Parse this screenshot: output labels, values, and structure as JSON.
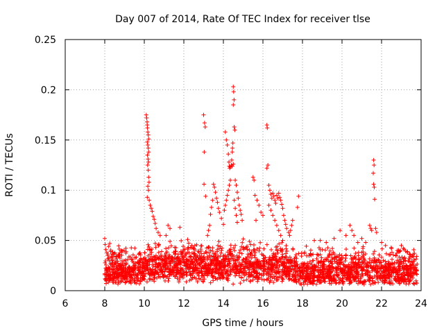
{
  "chart_data": {
    "type": "scatter",
    "title": "Day 007 of 2014, Rate Of TEC Index for receiver tlse",
    "xlabel": "GPS time / hours",
    "ylabel": "ROTI / TECUs",
    "xlim": [
      6,
      24
    ],
    "ylim": [
      0,
      0.25
    ],
    "x_ticks": [
      6,
      8,
      10,
      12,
      14,
      16,
      18,
      20,
      22,
      24
    ],
    "y_ticks": [
      0,
      0.05,
      0.1,
      0.15,
      0.2,
      0.25
    ],
    "x_tick_labels": [
      "6",
      "8",
      "10",
      "12",
      "14",
      "16",
      "18",
      "20",
      "22",
      "24"
    ],
    "y_tick_labels": [
      "0",
      "0.05",
      "0.1",
      "0.15",
      "0.2",
      "0.25"
    ],
    "grid": true,
    "marker": "+",
    "color": "#ff0000",
    "series": [
      {
        "name": "ROTI",
        "points": [
          [
            8.0,
            0.052
          ],
          [
            8.02,
            0.046
          ],
          [
            8.05,
            0.041
          ],
          [
            8.1,
            0.038
          ],
          [
            8.15,
            0.035
          ],
          [
            8.2,
            0.044
          ],
          [
            8.25,
            0.047
          ],
          [
            8.3,
            0.039
          ],
          [
            10.1,
            0.175
          ],
          [
            10.12,
            0.172
          ],
          [
            10.14,
            0.168
          ],
          [
            10.15,
            0.165
          ],
          [
            10.16,
            0.162
          ],
          [
            10.18,
            0.158
          ],
          [
            10.2,
            0.155
          ],
          [
            10.22,
            0.151
          ],
          [
            10.15,
            0.148
          ],
          [
            10.18,
            0.145
          ],
          [
            10.2,
            0.142
          ],
          [
            10.22,
            0.138
          ],
          [
            10.16,
            0.135
          ],
          [
            10.19,
            0.131
          ],
          [
            10.21,
            0.128
          ],
          [
            10.17,
            0.125
          ],
          [
            10.2,
            0.12
          ],
          [
            10.22,
            0.113
          ],
          [
            10.24,
            0.108
          ],
          [
            10.18,
            0.104
          ],
          [
            10.21,
            0.1
          ],
          [
            10.15,
            0.093
          ],
          [
            10.25,
            0.09
          ],
          [
            10.3,
            0.085
          ],
          [
            10.35,
            0.082
          ],
          [
            10.4,
            0.079
          ],
          [
            10.45,
            0.074
          ],
          [
            10.5,
            0.071
          ],
          [
            10.55,
            0.067
          ],
          [
            10.6,
            0.062
          ],
          [
            10.7,
            0.058
          ],
          [
            10.8,
            0.055
          ],
          [
            11.2,
            0.065
          ],
          [
            11.3,
            0.062
          ],
          [
            11.8,
            0.063
          ],
          [
            11.1,
            0.055
          ],
          [
            12.4,
            0.045
          ],
          [
            13.0,
            0.175
          ],
          [
            13.05,
            0.167
          ],
          [
            13.08,
            0.163
          ],
          [
            13.03,
            0.138
          ],
          [
            13.02,
            0.106
          ],
          [
            13.1,
            0.094
          ],
          [
            13.5,
            0.106
          ],
          [
            13.55,
            0.103
          ],
          [
            13.6,
            0.098
          ],
          [
            13.65,
            0.092
          ],
          [
            13.7,
            0.088
          ],
          [
            13.75,
            0.082
          ],
          [
            13.8,
            0.078
          ],
          [
            13.45,
            0.09
          ],
          [
            13.4,
            0.083
          ],
          [
            13.35,
            0.076
          ],
          [
            13.3,
            0.065
          ],
          [
            13.25,
            0.06
          ],
          [
            13.2,
            0.055
          ],
          [
            13.9,
            0.072
          ],
          [
            14.0,
            0.066
          ],
          [
            14.1,
            0.158
          ],
          [
            14.15,
            0.15
          ],
          [
            14.2,
            0.145
          ],
          [
            14.25,
            0.136
          ],
          [
            14.28,
            0.128
          ],
          [
            14.3,
            0.124
          ],
          [
            14.32,
            0.122
          ],
          [
            14.35,
            0.123
          ],
          [
            14.4,
            0.125
          ],
          [
            14.45,
            0.124
          ],
          [
            14.5,
            0.203
          ],
          [
            14.52,
            0.198
          ],
          [
            14.54,
            0.19
          ],
          [
            14.5,
            0.185
          ],
          [
            14.55,
            0.163
          ],
          [
            14.58,
            0.16
          ],
          [
            14.48,
            0.147
          ],
          [
            14.46,
            0.142
          ],
          [
            14.45,
            0.138
          ],
          [
            14.42,
            0.13
          ],
          [
            14.5,
            0.126
          ],
          [
            14.35,
            0.11
          ],
          [
            14.3,
            0.105
          ],
          [
            14.25,
            0.1
          ],
          [
            14.6,
            0.11
          ],
          [
            14.65,
            0.105
          ],
          [
            14.7,
            0.098
          ],
          [
            14.75,
            0.092
          ],
          [
            14.8,
            0.085
          ],
          [
            14.85,
            0.08
          ],
          [
            14.9,
            0.076
          ],
          [
            14.95,
            0.07
          ],
          [
            14.2,
            0.095
          ],
          [
            14.15,
            0.09
          ],
          [
            14.1,
            0.085
          ],
          [
            14.05,
            0.08
          ],
          [
            14.55,
            0.09
          ],
          [
            14.6,
            0.082
          ],
          [
            14.65,
            0.075
          ],
          [
            14.7,
            0.068
          ],
          [
            15.5,
            0.113
          ],
          [
            15.55,
            0.11
          ],
          [
            15.6,
            0.095
          ],
          [
            15.7,
            0.09
          ],
          [
            15.8,
            0.085
          ],
          [
            15.9,
            0.078
          ],
          [
            16.0,
            0.075
          ],
          [
            15.65,
            0.07
          ],
          [
            16.2,
            0.165
          ],
          [
            16.22,
            0.162
          ],
          [
            16.25,
            0.125
          ],
          [
            16.2,
            0.122
          ],
          [
            16.3,
            0.105
          ],
          [
            16.35,
            0.1
          ],
          [
            16.4,
            0.096
          ],
          [
            16.45,
            0.092
          ],
          [
            16.5,
            0.097
          ],
          [
            16.55,
            0.094
          ],
          [
            16.6,
            0.09
          ],
          [
            16.65,
            0.087
          ],
          [
            16.7,
            0.095
          ],
          [
            16.75,
            0.092
          ],
          [
            16.8,
            0.097
          ],
          [
            16.85,
            0.093
          ],
          [
            16.9,
            0.09
          ],
          [
            16.95,
            0.086
          ],
          [
            17.0,
            0.082
          ],
          [
            17.05,
            0.075
          ],
          [
            17.1,
            0.07
          ],
          [
            17.15,
            0.066
          ],
          [
            17.2,
            0.062
          ],
          [
            17.3,
            0.058
          ],
          [
            17.8,
            0.094
          ],
          [
            17.75,
            0.083
          ],
          [
            17.5,
            0.07
          ],
          [
            17.45,
            0.065
          ],
          [
            17.4,
            0.06
          ],
          [
            17.35,
            0.055
          ],
          [
            16.3,
            0.085
          ],
          [
            16.4,
            0.08
          ],
          [
            16.5,
            0.075
          ],
          [
            16.6,
            0.07
          ],
          [
            16.7,
            0.065
          ],
          [
            16.8,
            0.06
          ],
          [
            16.9,
            0.055
          ],
          [
            17.0,
            0.05
          ],
          [
            18.6,
            0.05
          ],
          [
            18.9,
            0.05
          ],
          [
            19.2,
            0.048
          ],
          [
            19.6,
            0.052
          ],
          [
            19.9,
            0.06
          ],
          [
            20.2,
            0.055
          ],
          [
            20.4,
            0.065
          ],
          [
            20.5,
            0.06
          ],
          [
            20.6,
            0.055
          ],
          [
            20.8,
            0.048
          ],
          [
            21.0,
            0.052
          ],
          [
            21.2,
            0.048
          ],
          [
            21.4,
            0.065
          ],
          [
            21.45,
            0.062
          ],
          [
            21.5,
            0.06
          ],
          [
            21.6,
            0.13
          ],
          [
            21.62,
            0.125
          ],
          [
            21.58,
            0.117
          ],
          [
            21.6,
            0.106
          ],
          [
            21.63,
            0.103
          ],
          [
            21.65,
            0.091
          ],
          [
            21.7,
            0.062
          ],
          [
            21.75,
            0.058
          ],
          [
            22.0,
            0.048
          ],
          [
            22.2,
            0.045
          ],
          [
            22.5,
            0.042
          ],
          [
            22.8,
            0.04
          ],
          [
            23.0,
            0.045
          ],
          [
            23.1,
            0.042
          ],
          [
            23.3,
            0.038
          ],
          [
            23.6,
            0.036
          ]
        ]
      }
    ]
  }
}
